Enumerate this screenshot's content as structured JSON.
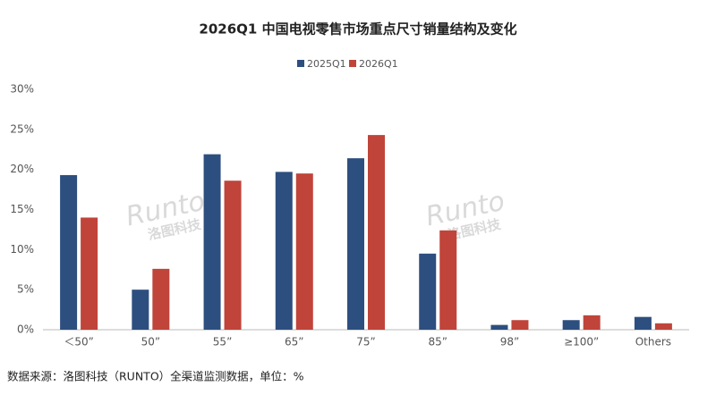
{
  "chart_data": {
    "type": "bar",
    "title": "2026Q1 中国电视零售市场重点尺寸销量结构及变化",
    "categories": [
      "＜50”",
      "50”",
      "55”",
      "65”",
      "75”",
      "85”",
      "98”",
      "≥100”",
      "Others"
    ],
    "series": [
      {
        "name": "2025Q1",
        "color": "#2d4f7f",
        "values": [
          19.3,
          5.0,
          21.9,
          19.7,
          21.4,
          9.5,
          0.6,
          1.2,
          1.6
        ]
      },
      {
        "name": "2026Q1",
        "color": "#c0443a",
        "values": [
          14.0,
          7.6,
          18.6,
          19.5,
          24.3,
          12.4,
          1.2,
          1.8,
          0.8
        ]
      }
    ],
    "ylim": [
      0,
      30
    ],
    "yticks": [
      {
        "value": 0,
        "label": "0%"
      },
      {
        "value": 5,
        "label": "5%"
      },
      {
        "value": 10,
        "label": "10%"
      },
      {
        "value": 15,
        "label": "15%"
      },
      {
        "value": 20,
        "label": "20%"
      },
      {
        "value": 25,
        "label": "25%"
      },
      {
        "value": 30,
        "label": "30%"
      }
    ],
    "grid": false,
    "legend": "top",
    "watermark": [
      "Runto",
      "洛图科技"
    ],
    "source": "数据来源：洛图科技（RUNTO）全渠道监测数据，单位：%"
  }
}
